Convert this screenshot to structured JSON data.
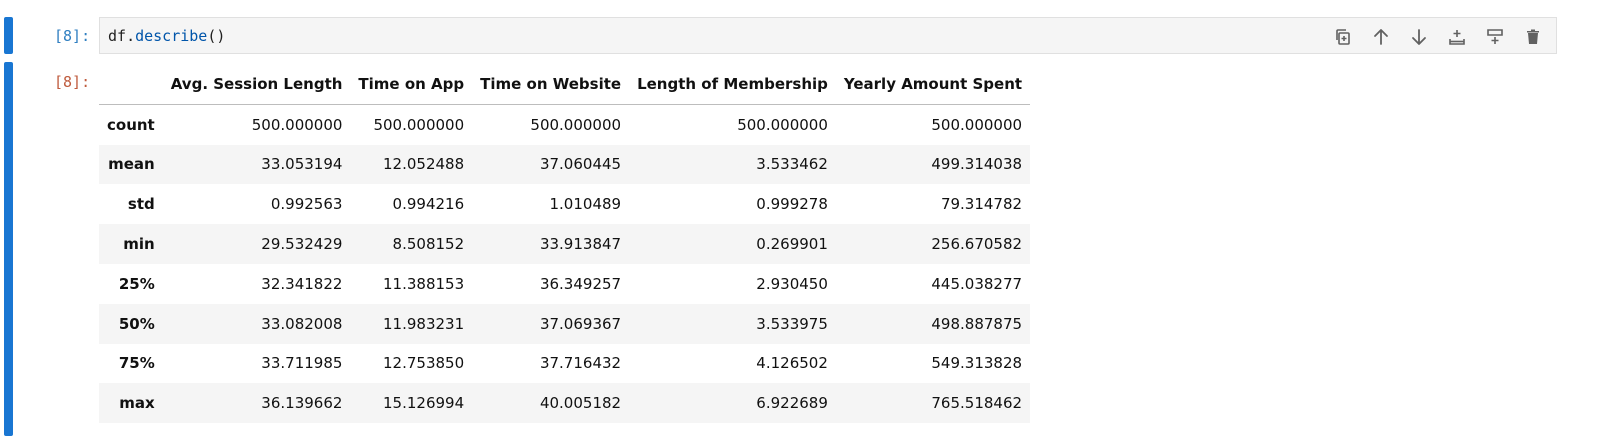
{
  "cell": {
    "input_prompt": "[8]:",
    "output_prompt": "[8]:",
    "code": {
      "object": "df",
      "dot": ".",
      "method": "describe",
      "call": "()"
    }
  },
  "toolbar": {
    "icons": [
      "duplicate-cell-icon",
      "move-up-icon",
      "move-down-icon",
      "insert-below-icon",
      "insert-above-icon",
      "delete-icon"
    ]
  },
  "table": {
    "index_header": "",
    "columns": [
      "Avg. Session Length",
      "Time on App",
      "Time on Website",
      "Length of Membership",
      "Yearly Amount Spent"
    ],
    "rows": [
      {
        "label": "count",
        "values": [
          "500.000000",
          "500.000000",
          "500.000000",
          "500.000000",
          "500.000000"
        ]
      },
      {
        "label": "mean",
        "values": [
          "33.053194",
          "12.052488",
          "37.060445",
          "3.533462",
          "499.314038"
        ]
      },
      {
        "label": "std",
        "values": [
          "0.992563",
          "0.994216",
          "1.010489",
          "0.999278",
          "79.314782"
        ]
      },
      {
        "label": "min",
        "values": [
          "29.532429",
          "8.508152",
          "33.913847",
          "0.269901",
          "256.670582"
        ]
      },
      {
        "label": "25%",
        "values": [
          "32.341822",
          "11.388153",
          "36.349257",
          "2.930450",
          "445.038277"
        ]
      },
      {
        "label": "50%",
        "values": [
          "33.082008",
          "11.983231",
          "37.069367",
          "3.533975",
          "498.887875"
        ]
      },
      {
        "label": "75%",
        "values": [
          "33.711985",
          "12.753850",
          "37.716432",
          "4.126502",
          "549.313828"
        ]
      },
      {
        "label": "max",
        "values": [
          "36.139662",
          "15.126994",
          "40.005182",
          "6.922689",
          "765.518462"
        ]
      }
    ]
  },
  "colors": {
    "cell_bar": "#1976d2",
    "input_prompt": "#307fc1",
    "output_prompt": "#bf5b3d",
    "method": "#0055aa"
  }
}
